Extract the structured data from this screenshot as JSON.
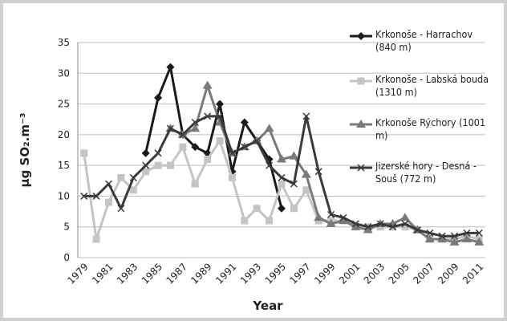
{
  "chart_data": {
    "type": "line",
    "x_label": "Year",
    "y_label": "μg SO₂.m⁻³",
    "categories": [
      "1979",
      null,
      "1981",
      null,
      "1983",
      null,
      "1985",
      null,
      "1987",
      null,
      "1989",
      null,
      "1991",
      null,
      "1993",
      null,
      "1995",
      null,
      "1997",
      null,
      "1999",
      null,
      "2001",
      null,
      "2003",
      null,
      "2005",
      null,
      "2007",
      null,
      "2009",
      null,
      "2011"
    ],
    "ylim": [
      0,
      35
    ],
    "yticks": [
      0,
      5,
      10,
      15,
      20,
      25,
      30,
      35
    ],
    "grid": true,
    "series": [
      {
        "name": "Krkonoše - Harrachov (840 m)",
        "color": "#1a1a1a",
        "marker": "diamond",
        "values": [
          null,
          null,
          null,
          null,
          null,
          17,
          26,
          31,
          20,
          18,
          17,
          25,
          14,
          22,
          19,
          16,
          8,
          null,
          null,
          null,
          null,
          null,
          null,
          null,
          null,
          null,
          null,
          null,
          null,
          null,
          null,
          null,
          null
        ]
      },
      {
        "name": "Krkonoše - Labská bouda (1310 m)",
        "color": "#c4c4c4",
        "marker": "square",
        "values": [
          17,
          3,
          9,
          13,
          11,
          14,
          15,
          15,
          18,
          12,
          16,
          19,
          13,
          6,
          8,
          6,
          12,
          8,
          11,
          6,
          6,
          6,
          5,
          5,
          5,
          5,
          5,
          4.5,
          3,
          3,
          3,
          3.5,
          3
        ]
      },
      {
        "name": "Krkonoše Rýchory (1001 m)",
        "color": "#7a7a7a",
        "marker": "triangle",
        "values": [
          null,
          null,
          null,
          null,
          null,
          null,
          null,
          21,
          20,
          21,
          28,
          22,
          17,
          18,
          19,
          21,
          16,
          16.5,
          13.5,
          6.5,
          5.5,
          6,
          5,
          4.5,
          5.5,
          5.5,
          6.5,
          4.5,
          3,
          3,
          2.5,
          3,
          2.5
        ]
      },
      {
        "name": "Jizerské hory - Desná - Souš (772 m)",
        "color": "#3a3a3a",
        "marker": "x",
        "values": [
          10,
          10,
          12,
          8,
          13,
          15,
          17,
          21,
          20,
          22,
          23,
          23,
          17,
          18,
          19,
          15,
          13,
          12,
          23,
          14,
          7,
          6.5,
          5.5,
          5,
          5.5,
          5,
          5.5,
          4.5,
          4,
          3.5,
          3.5,
          4,
          4
        ]
      }
    ]
  }
}
